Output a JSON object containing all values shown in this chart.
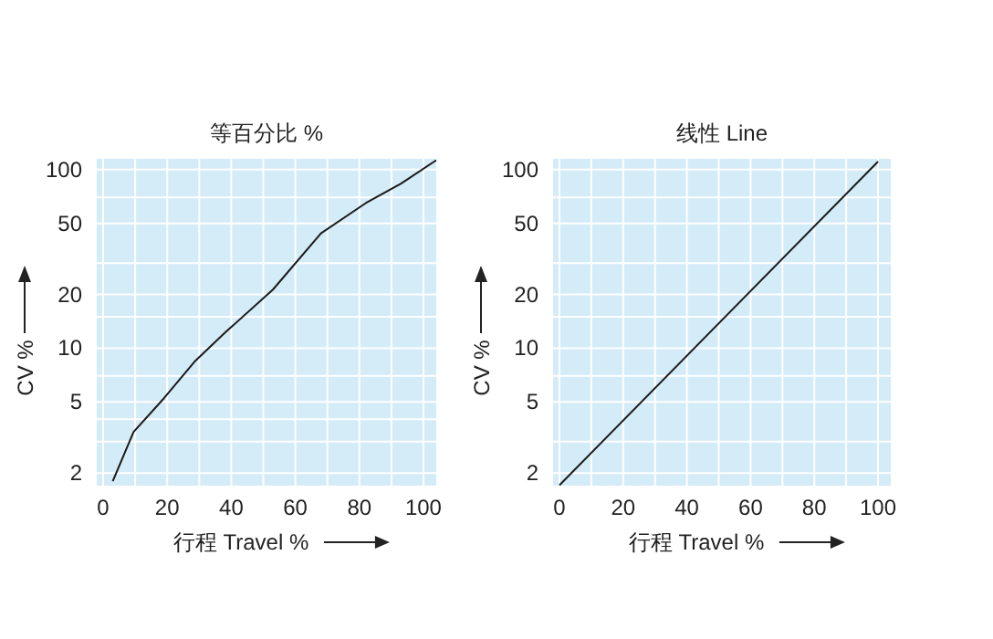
{
  "chart_data": [
    {
      "type": "line",
      "title": "等百分比 %",
      "xlabel": "行程 Travel %",
      "ylabel": "CV %",
      "log": "y",
      "grid": true,
      "xlim": [
        -2,
        104
      ],
      "ylim": [
        1.7,
        115
      ],
      "xticks": [
        0,
        {
          "value": 10,
          "label": null
        },
        20,
        {
          "value": 30,
          "label": null
        },
        40,
        {
          "value": 50,
          "label": null
        },
        60,
        {
          "value": 70,
          "label": null
        },
        80,
        {
          "value": 90,
          "label": null
        },
        100
      ],
      "yticks": [
        2,
        {
          "value": 3,
          "label": null
        },
        {
          "value": 4,
          "label": null
        },
        5,
        {
          "value": 7,
          "label": null
        },
        10,
        {
          "value": 15,
          "label": null
        },
        20,
        {
          "value": 30,
          "label": null
        },
        50,
        {
          "value": 70,
          "label": null
        },
        100
      ],
      "series": [
        {
          "color": "#1a1a1a",
          "x": [
            3,
            9.5,
            19,
            28.5,
            38,
            53,
            68,
            82,
            93,
            104
          ],
          "values": [
            1.8,
            3.4,
            5.25,
            8.4,
            12.2,
            21.3,
            44,
            65,
            83.6,
            113
          ]
        }
      ]
    },
    {
      "type": "line",
      "title": "线性 Line",
      "xlabel": "行程 Travel %",
      "ylabel": "CV %",
      "log": "y",
      "grid": true,
      "xlim": [
        -2,
        104
      ],
      "ylim": [
        1.7,
        115
      ],
      "xticks": [
        0,
        {
          "value": 10,
          "label": null
        },
        20,
        {
          "value": 30,
          "label": null
        },
        40,
        {
          "value": 50,
          "label": null
        },
        60,
        {
          "value": 70,
          "label": null
        },
        80,
        {
          "value": 90,
          "label": null
        },
        100
      ],
      "yticks": [
        2,
        {
          "value": 3,
          "label": null
        },
        5,
        {
          "value": 7,
          "label": null
        },
        10,
        {
          "value": 15,
          "label": null
        },
        20,
        {
          "value": 30,
          "label": null
        },
        50,
        {
          "value": 70,
          "label": null
        },
        100
      ],
      "series": [
        {
          "color": "#1a1a1a",
          "x": [
            0,
            100
          ],
          "values": [
            1.71,
            111
          ]
        }
      ]
    }
  ]
}
